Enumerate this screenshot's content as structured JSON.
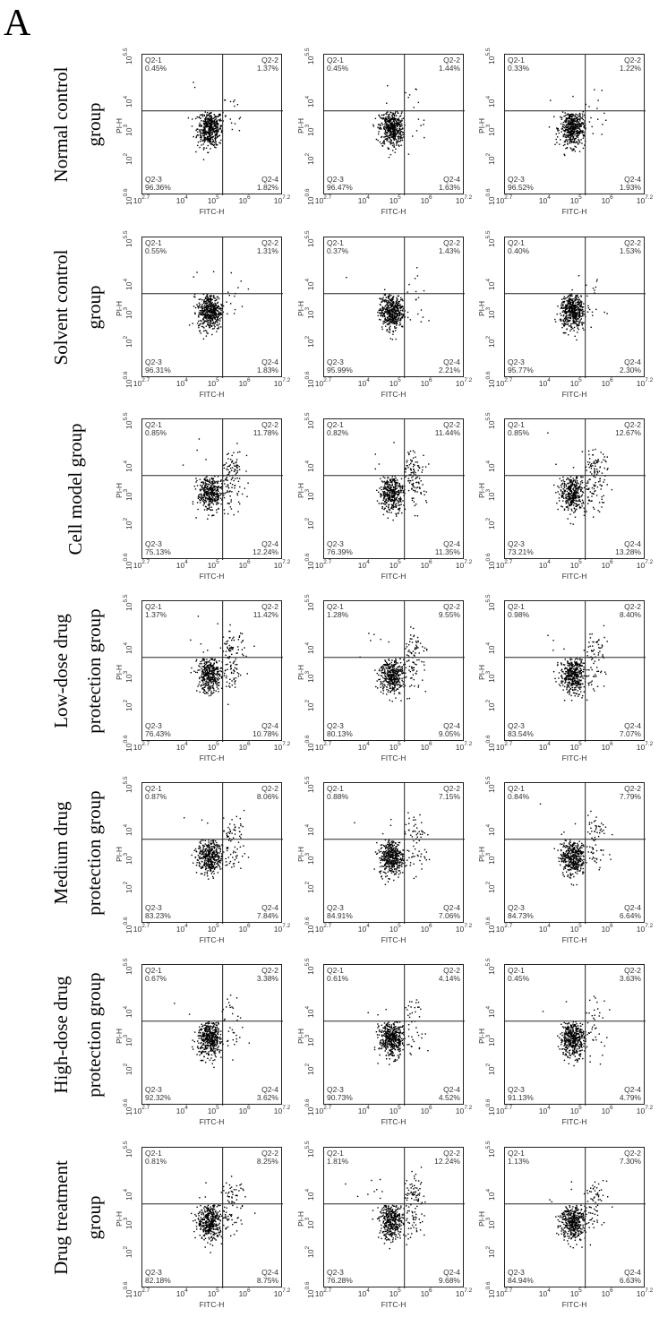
{
  "panel_letter": "A",
  "chart_data": {
    "type": "scatter",
    "x_label": "FITC-H",
    "y_label": "PI-H",
    "xlim_log10": [
      2.7,
      7.2
    ],
    "ylim_log10": [
      0.6,
      5.5
    ],
    "x_ticks": [
      {
        "base": "10",
        "exp": "2.7"
      },
      {
        "base": "10",
        "exp": "4"
      },
      {
        "base": "10",
        "exp": "5"
      },
      {
        "base": "10",
        "exp": "6"
      },
      {
        "base": "10",
        "exp": "7.2"
      }
    ],
    "x_tick_values": [
      2.7,
      4,
      5,
      6,
      7.2
    ],
    "y_ticks": [
      {
        "base": "10",
        "exp": "5.5"
      },
      {
        "base": "10",
        "exp": "4"
      },
      {
        "base": "10",
        "exp": "3"
      },
      {
        "base": "10",
        "exp": "2"
      },
      {
        "base": "10",
        "exp": "0.6"
      }
    ],
    "y_tick_values": [
      5.5,
      4,
      3,
      2,
      0.6
    ],
    "gate_log10": {
      "x": 5.27,
      "y": 3.54
    },
    "quadrant_names": [
      "Q2-1",
      "Q2-2",
      "Q2-3",
      "Q2-4"
    ],
    "groups": [
      {
        "label_lines": [
          "Normal control",
          "group"
        ],
        "replicates": [
          {
            "q1": "0.45%",
            "q2": "1.37%",
            "q3": "96.36%",
            "q4": "1.82%"
          },
          {
            "q1": "0.45%",
            "q2": "1.44%",
            "q3": "96.47%",
            "q4": "1.63%"
          },
          {
            "q1": "0.33%",
            "q2": "1.22%",
            "q3": "96.52%",
            "q4": "1.93%"
          }
        ]
      },
      {
        "label_lines": [
          "Solvent control",
          "group"
        ],
        "replicates": [
          {
            "q1": "0.55%",
            "q2": "1.31%",
            "q3": "96.31%",
            "q4": "1.83%"
          },
          {
            "q1": "0.37%",
            "q2": "1.43%",
            "q3": "95.99%",
            "q4": "2.21%"
          },
          {
            "q1": "0.40%",
            "q2": "1.53%",
            "q3": "95.77%",
            "q4": "2.30%"
          }
        ]
      },
      {
        "label_lines": [
          "Cell model group"
        ],
        "replicates": [
          {
            "q1": "0.85%",
            "q2": "11.78%",
            "q3": "75.13%",
            "q4": "12.24%"
          },
          {
            "q1": "0.82%",
            "q2": "11.44%",
            "q3": "76.39%",
            "q4": "11.35%"
          },
          {
            "q1": "0.85%",
            "q2": "12.67%",
            "q3": "73.21%",
            "q4": "13.28%"
          }
        ]
      },
      {
        "label_lines": [
          "Low-dose drug",
          "protection group"
        ],
        "replicates": [
          {
            "q1": "1.37%",
            "q2": "11.42%",
            "q3": "76.43%",
            "q4": "10.78%"
          },
          {
            "q1": "1.28%",
            "q2": "9.55%",
            "q3": "80.13%",
            "q4": "9.05%"
          },
          {
            "q1": "0.98%",
            "q2": "8.40%",
            "q3": "83.54%",
            "q4": "7.07%"
          }
        ]
      },
      {
        "label_lines": [
          "Medium drug",
          "protection group"
        ],
        "replicates": [
          {
            "q1": "0.87%",
            "q2": "8.06%",
            "q3": "83.23%",
            "q4": "7.84%"
          },
          {
            "q1": "0.88%",
            "q2": "7.15%",
            "q3": "84.91%",
            "q4": "7.06%"
          },
          {
            "q1": "0.84%",
            "q2": "7.79%",
            "q3": "84.73%",
            "q4": "6.64%"
          }
        ]
      },
      {
        "label_lines": [
          "High-dose drug",
          "protection group"
        ],
        "replicates": [
          {
            "q1": "0.67%",
            "q2": "3.38%",
            "q3": "92.32%",
            "q4": "3.62%"
          },
          {
            "q1": "0.61%",
            "q2": "4.14%",
            "q3": "90.73%",
            "q4": "4.52%"
          },
          {
            "q1": "0.45%",
            "q2": "3.63%",
            "q3": "91.13%",
            "q4": "4.79%"
          }
        ]
      },
      {
        "label_lines": [
          "Drug treatment",
          "group"
        ],
        "replicates": [
          {
            "q1": "0.81%",
            "q2": "8.25%",
            "q3": "82.18%",
            "q4": "8.75%"
          },
          {
            "q1": "1.81%",
            "q2": "12.24%",
            "q3": "76.28%",
            "q4": "9.68%"
          },
          {
            "q1": "1.13%",
            "q2": "7.30%",
            "q3": "84.94%",
            "q4": "6.63%"
          }
        ]
      }
    ]
  }
}
